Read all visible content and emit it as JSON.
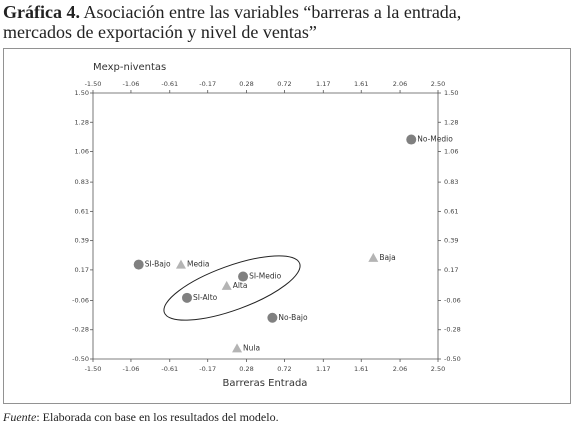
{
  "chart_data": {
    "type": "scatter",
    "title_label": "Gráfica 4.",
    "title_lines": [
      "Asociación entre las variables “barreras a la entrada,",
      "mercados de exportación y nivel de ventas”"
    ],
    "x_label": "Barreras Entrada",
    "y_label": "Mexp-niventas",
    "xlim": [
      -1.5,
      2.5
    ],
    "ylim": [
      -0.5,
      1.5
    ],
    "xticks": [
      {
        "value": -1.5,
        "label": "-1.50"
      },
      -1.06,
      -0.61,
      -0.17,
      0.28,
      0.72,
      1.17,
      1.61,
      2.06,
      {
        "value": 2.5,
        "label": "2.50"
      }
    ],
    "yticks": [
      {
        "value": 1.5,
        "label": "1.50"
      },
      1.28,
      1.06,
      0.83,
      0.61,
      0.39,
      0.17,
      -0.06,
      -0.28,
      {
        "value": -0.5,
        "label": "-0.50"
      }
    ],
    "circle_color": "#808080",
    "triangle_color": "#b4b4b4",
    "points": [
      {
        "label": "No-Medio",
        "x": 2.19,
        "y": 1.15,
        "shape": "circle"
      },
      {
        "label": "SI-Bajo",
        "x": -0.97,
        "y": 0.21,
        "shape": "circle"
      },
      {
        "label": "Media",
        "x": -0.48,
        "y": 0.21,
        "shape": "triangle"
      },
      {
        "label": "SI-Medio",
        "x": 0.24,
        "y": 0.12,
        "shape": "circle"
      },
      {
        "label": "Alta",
        "x": 0.05,
        "y": 0.05,
        "shape": "triangle"
      },
      {
        "label": "SI-Alto",
        "x": -0.41,
        "y": -0.04,
        "shape": "circle"
      },
      {
        "label": "No-Bajo",
        "x": 0.58,
        "y": -0.19,
        "shape": "circle"
      },
      {
        "label": "Baja",
        "x": 1.75,
        "y": 0.26,
        "shape": "triangle"
      },
      {
        "label": "Nula",
        "x": 0.17,
        "y": -0.42,
        "shape": "triangle"
      }
    ],
    "source_label": "Fuente",
    "source_text": ": Elaborada con base en los resultados del modelo."
  }
}
